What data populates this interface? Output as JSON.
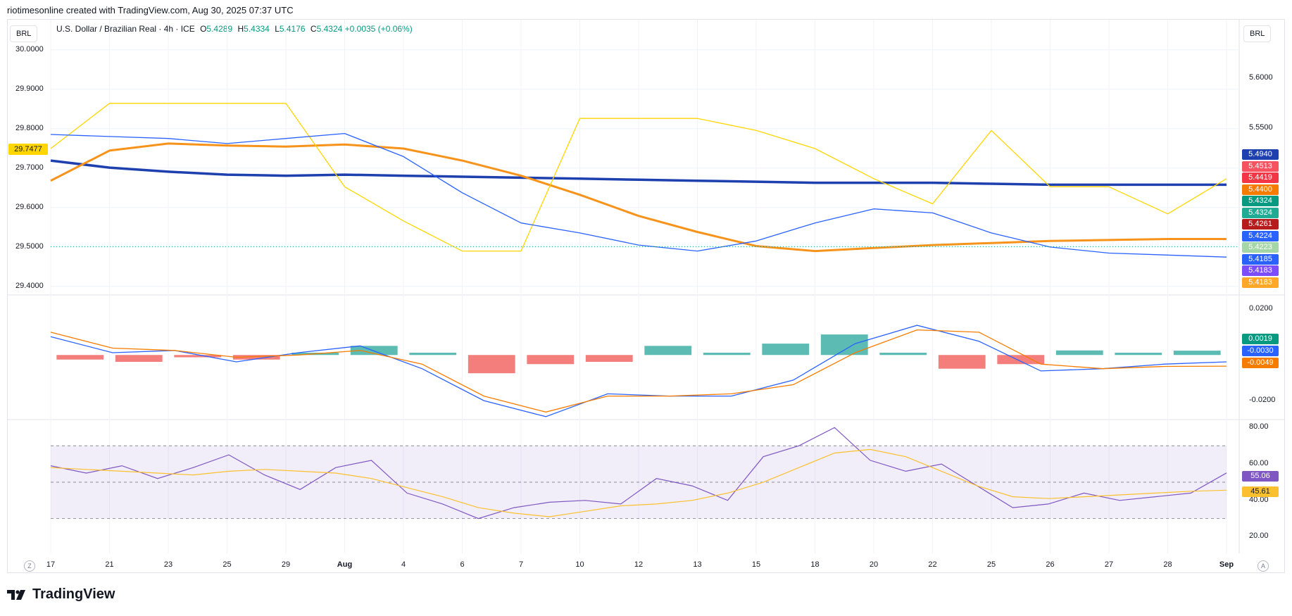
{
  "header": {
    "credit": "riotimesonline created with TradingView.com, Aug 30, 2025 07:37 UTC",
    "symbol_chip_left": "BRL",
    "symbol_chip_right": "BRL",
    "title": "U.S. Dollar / Brazilian Real · 4h · ICE",
    "ohlc": {
      "o_label": "O",
      "o": "5.4289",
      "h_label": "H",
      "h": "5.4334",
      "l_label": "L",
      "l": "5.4176",
      "c_label": "C",
      "c": "5.4324",
      "change": "+0.0035 (+0.06%)"
    }
  },
  "footer": {
    "brand": "TradingView",
    "left_button": "Z",
    "right_button": "A"
  },
  "colors": {
    "up": "#089981",
    "down": "#f23645",
    "ma_blue": "#1e40af",
    "ma_orange": "#f7931a",
    "yellow": "#ffd600",
    "bollinger": "#2962ff",
    "rsi": "#7e57c2",
    "rsi_ma": "#fbc02d"
  },
  "chart_data": [
    {
      "type": "line",
      "title": "U.S. Dollar / Brazilian Real · 4h · ICE",
      "left_axis": {
        "ticks": [
          "30.0000",
          "29.9000",
          "29.8000",
          "29.7000",
          "29.6000",
          "29.5000",
          "29.4000"
        ],
        "current": "29.7477",
        "range": [
          29.38,
          30.03
        ]
      },
      "right_axis": {
        "ticks": [
          "5.6000",
          "5.5500"
        ],
        "range": [
          5.385,
          5.64
        ]
      },
      "x": [
        "17",
        "21",
        "23",
        "25",
        "29",
        "Aug",
        "4",
        "6",
        "7",
        "10",
        "12",
        "13",
        "15",
        "18",
        "20",
        "22",
        "25",
        "26",
        "27",
        "28",
        "Sep"
      ],
      "series": [
        {
          "color": "#1e40af",
          "values": [
            5.518,
            5.511,
            5.507,
            5.504,
            5.503,
            5.504,
            5.503,
            5.502,
            5.501,
            5.5,
            5.499,
            5.498,
            5.497,
            5.496,
            5.496,
            5.496,
            5.495,
            5.494,
            5.494,
            5.494,
            5.494
          ]
        },
        {
          "color": "#f7931a",
          "values": [
            5.498,
            5.528,
            5.535,
            5.533,
            5.532,
            5.534,
            5.53,
            5.518,
            5.503,
            5.484,
            5.463,
            5.447,
            5.433,
            5.428,
            5.431,
            5.434,
            5.436,
            5.438,
            5.439,
            5.44,
            5.44
          ]
        },
        {
          "color": "#ffd600",
          "values": [
            5.53,
            5.575,
            5.575,
            5.575,
            5.575,
            5.492,
            5.458,
            5.428,
            5.428,
            5.56,
            5.56,
            5.56,
            5.548,
            5.53,
            5.5,
            5.475,
            5.548,
            5.492,
            5.492,
            5.465,
            5.5
          ]
        },
        {
          "color": "#2962ff",
          "values": [
            5.544,
            5.542,
            5.54,
            5.535,
            5.54,
            5.545,
            5.522,
            5.486,
            5.456,
            5.446,
            5.434,
            5.428,
            5.438,
            5.456,
            5.47,
            5.466,
            5.446,
            5.432,
            5.426,
            5.424,
            5.422
          ]
        }
      ],
      "price_labels": [
        {
          "value": "5.4940",
          "color": "#1e40af"
        },
        {
          "value": "5.4513",
          "color": "#f7525f"
        },
        {
          "value": "5.4419",
          "color": "#f23645"
        },
        {
          "value": "5.4400",
          "color": "#f57c00"
        },
        {
          "value": "5.4324",
          "color": "#089981"
        },
        {
          "value": "5.4324",
          "color": "#22ab94"
        },
        {
          "value": "5.4261",
          "color": "#b71c1c"
        },
        {
          "value": "5.4224",
          "color": "#2962ff"
        },
        {
          "value": "5.4223",
          "color": "#a5d6a7"
        },
        {
          "value": "5.4185",
          "color": "#2962ff"
        },
        {
          "value": "5.4183",
          "color": "#7c4dff"
        },
        {
          "value": "5.4183",
          "color": "#ffa726"
        }
      ]
    },
    {
      "type": "bar",
      "ticks": [
        "0.0200",
        "-0.0200"
      ],
      "range": [
        -0.028,
        0.026
      ],
      "histogram": [
        -0.002,
        -0.003,
        -0.001,
        -0.002,
        0.001,
        0.004,
        0.001,
        -0.008,
        -0.004,
        -0.003,
        0.004,
        0.001,
        0.005,
        0.009,
        0.001,
        -0.006,
        -0.004,
        0.002,
        0.001,
        0.0019
      ],
      "series": [
        {
          "color": "#2962ff",
          "values": [
            0.008,
            0.001,
            0.002,
            -0.003,
            0.001,
            0.004,
            -0.006,
            -0.02,
            -0.027,
            -0.017,
            -0.018,
            -0.018,
            -0.011,
            0.005,
            0.013,
            0.006,
            -0.007,
            -0.006,
            -0.004,
            -0.003
          ]
        },
        {
          "color": "#f57c00",
          "values": [
            0.01,
            0.003,
            0.002,
            -0.001,
            0.0,
            0.002,
            -0.004,
            -0.018,
            -0.025,
            -0.018,
            -0.018,
            -0.017,
            -0.013,
            0.001,
            0.011,
            0.01,
            -0.004,
            -0.006,
            -0.005,
            -0.0049
          ]
        }
      ],
      "price_labels": [
        {
          "value": "0.0019",
          "color": "#089981"
        },
        {
          "value": "-0.0030",
          "color": "#2962ff"
        },
        {
          "value": "-0.0049",
          "color": "#f57c00"
        }
      ]
    },
    {
      "type": "line",
      "ticks": [
        "80.00",
        "60.00",
        "40.00",
        "20.00"
      ],
      "range": [
        14,
        84
      ],
      "bands": [
        70,
        50,
        30
      ],
      "series": [
        {
          "color": "#7e57c2",
          "values": [
            59,
            55,
            59,
            52,
            58,
            65,
            54,
            46,
            58,
            62,
            44,
            38,
            30,
            36,
            39,
            40,
            38,
            52,
            48,
            40,
            64,
            70,
            80,
            62,
            56,
            60,
            48,
            36,
            38,
            44,
            40,
            42,
            44,
            55.06
          ]
        },
        {
          "color": "#fbc02d",
          "values": [
            58,
            57,
            56,
            55,
            54,
            56,
            57,
            56,
            55,
            52,
            47,
            42,
            36,
            33,
            31,
            34,
            37,
            38,
            40,
            44,
            50,
            58,
            66,
            68,
            64,
            56,
            48,
            42,
            41,
            42,
            43,
            44,
            45,
            45.61
          ]
        }
      ],
      "price_labels": [
        {
          "value": "55.06",
          "color": "#7e57c2"
        },
        {
          "value": "45.61",
          "color": "#fbc02d"
        }
      ]
    }
  ]
}
